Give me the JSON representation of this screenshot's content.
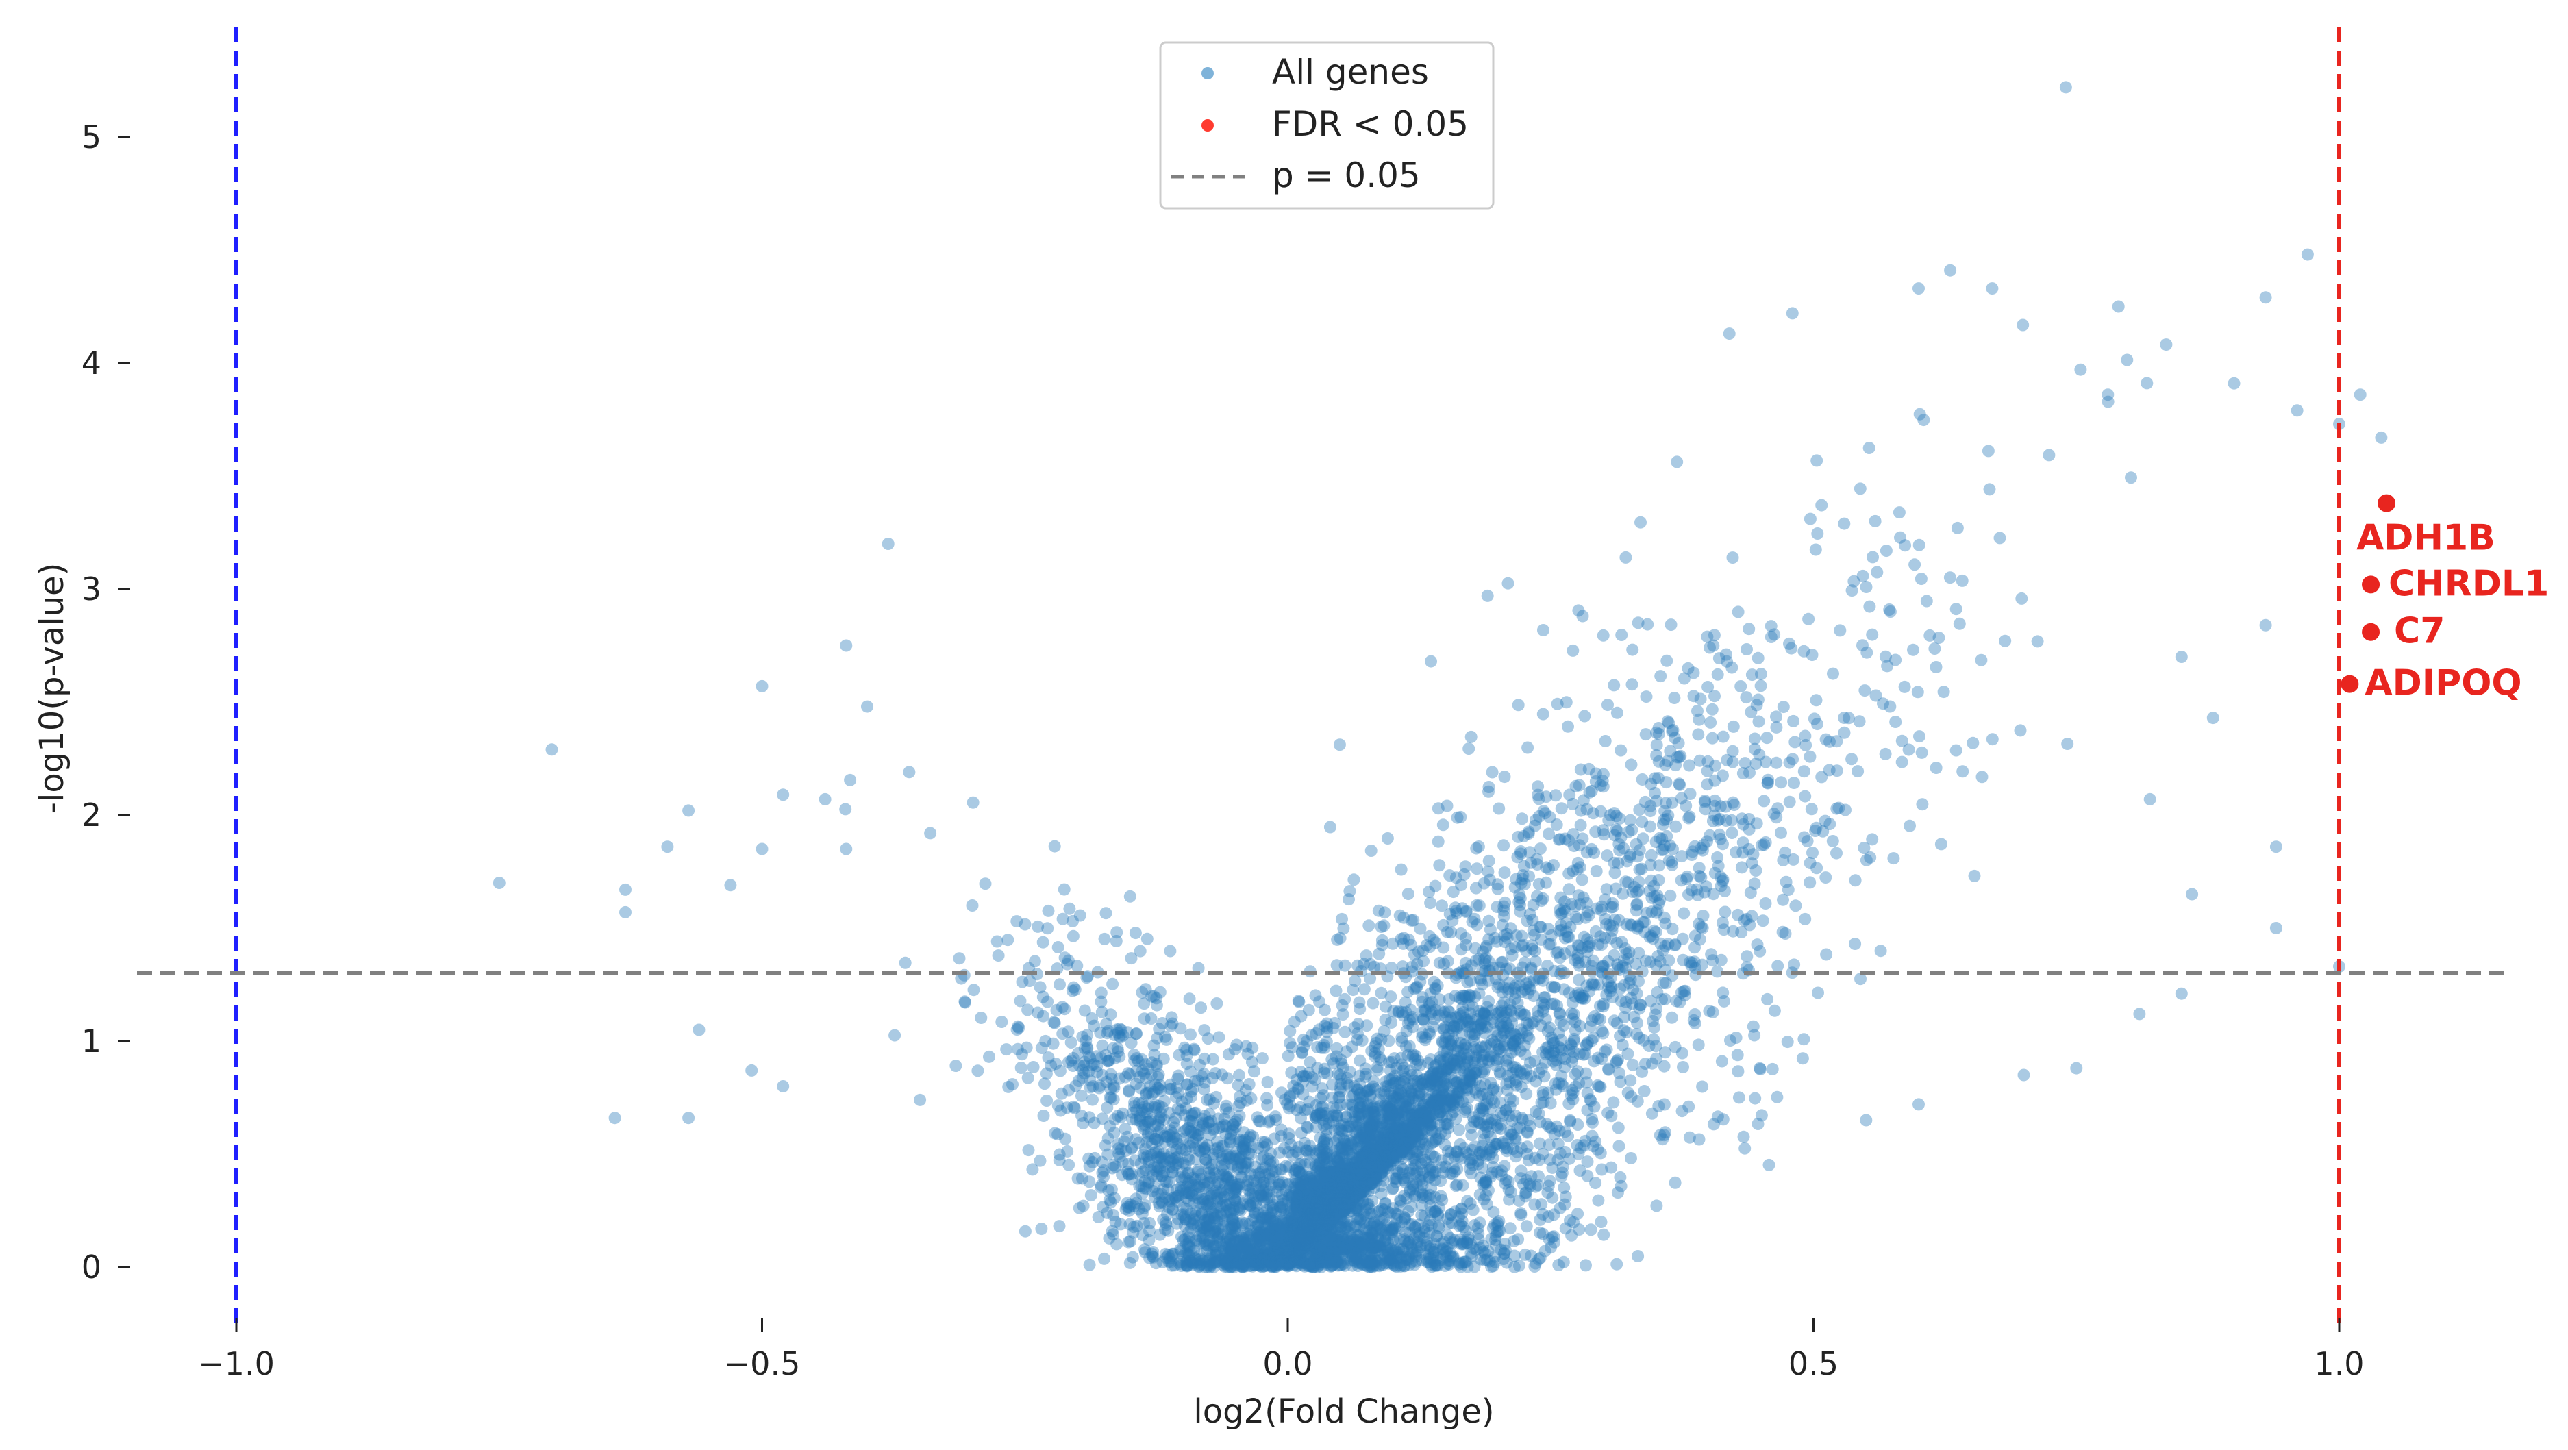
{
  "chart_data": {
    "type": "scatter",
    "title": "",
    "xlabel": "log2(Fold Change)",
    "ylabel": "-log10(p-value)",
    "xlim": [
      -1.1,
      1.2
    ],
    "ylim": [
      -0.2,
      5.45
    ],
    "x_ticks": [
      -1.0,
      -0.5,
      0.0,
      0.5,
      1.0
    ],
    "x_tick_labels": [
      "−1.0",
      "−0.5",
      "0.0",
      "0.5",
      "1.0"
    ],
    "y_ticks": [
      0,
      1,
      2,
      3,
      4,
      5
    ],
    "y_tick_labels": [
      "0",
      "1",
      "2",
      "3",
      "4",
      "5"
    ],
    "grid": false,
    "legend_position": "top-center",
    "legend": [
      {
        "label": "All genes",
        "kind": "point",
        "color": "#7fb3d9"
      },
      {
        "label": "FDR < 0.05",
        "kind": "point",
        "color": "#ff3b30"
      },
      {
        "label": "p = 0.05",
        "kind": "dashed-line",
        "color": "#808080"
      }
    ],
    "reference_lines": [
      {
        "orientation": "vertical",
        "x": -1.0,
        "color": "#1f1fff",
        "style": "dashed"
      },
      {
        "orientation": "vertical",
        "x": 1.0,
        "color": "#e8251f",
        "style": "dashed"
      },
      {
        "orientation": "horizontal",
        "y": 1.3,
        "color": "#808080",
        "style": "dashed"
      }
    ],
    "colors": {
      "all_genes": "#2b7bba",
      "significant": "#e8251f",
      "text": "#222222"
    },
    "highlighted_genes": [
      {
        "gene": "ADH1B",
        "x": 1.045,
        "y": 3.38
      },
      {
        "gene": "CHRDL1",
        "x": 1.03,
        "y": 3.02
      },
      {
        "gene": "C7",
        "x": 1.03,
        "y": 2.81
      },
      {
        "gene": "ADIPOQ",
        "x": 1.01,
        "y": 2.58
      }
    ],
    "series": [
      {
        "name": "All genes",
        "note_points": "approximately 10000 genes; representative visible outliers listed below, dense central V-shaped cloud drawn from the same distribution",
        "points": [
          [
            0.74,
            5.22
          ],
          [
            0.97,
            4.48
          ],
          [
            0.93,
            4.29
          ],
          [
            0.63,
            4.41
          ],
          [
            0.6,
            4.33
          ],
          [
            0.67,
            4.33
          ],
          [
            0.48,
            4.22
          ],
          [
            0.42,
            4.13
          ],
          [
            0.79,
            4.25
          ],
          [
            1.0,
            3.73
          ],
          [
            1.02,
            3.86
          ],
          [
            1.04,
            3.67
          ],
          [
            0.96,
            3.79
          ],
          [
            0.9,
            3.91
          ],
          [
            0.78,
            3.86
          ],
          [
            -0.38,
            3.2
          ],
          [
            0.19,
            2.97
          ],
          [
            -0.7,
            2.29
          ],
          [
            -0.42,
            2.75
          ],
          [
            -0.5,
            2.57
          ],
          [
            -0.4,
            2.48
          ],
          [
            -0.75,
            1.7
          ],
          [
            -0.57,
            2.02
          ],
          [
            -0.59,
            1.86
          ],
          [
            -0.5,
            1.85
          ],
          [
            -0.42,
            1.85
          ],
          [
            -0.63,
            1.67
          ],
          [
            -0.63,
            1.57
          ],
          [
            -0.53,
            1.69
          ],
          [
            -0.44,
            2.07
          ],
          [
            -0.48,
            2.09
          ],
          [
            -0.36,
            2.19
          ],
          [
            -0.34,
            1.92
          ],
          [
            -0.64,
            0.66
          ],
          [
            -0.57,
            0.66
          ],
          [
            -0.56,
            1.05
          ],
          [
            -0.51,
            0.87
          ],
          [
            -0.48,
            0.8
          ],
          [
            -0.3,
            1.6
          ],
          [
            -0.15,
            1.64
          ],
          [
            0.94,
            1.86
          ],
          [
            0.94,
            1.5
          ],
          [
            0.88,
            2.43
          ],
          [
            0.86,
            1.65
          ],
          [
            0.82,
            2.07
          ],
          [
            1.0,
            1.33
          ],
          [
            0.55,
            0.65
          ],
          [
            0.6,
            0.72
          ],
          [
            0.7,
            0.85
          ],
          [
            0.75,
            0.88
          ],
          [
            0.81,
            1.12
          ],
          [
            0.85,
            1.21
          ],
          [
            0.93,
            2.84
          ],
          [
            0.85,
            2.7
          ]
        ]
      }
    ]
  }
}
